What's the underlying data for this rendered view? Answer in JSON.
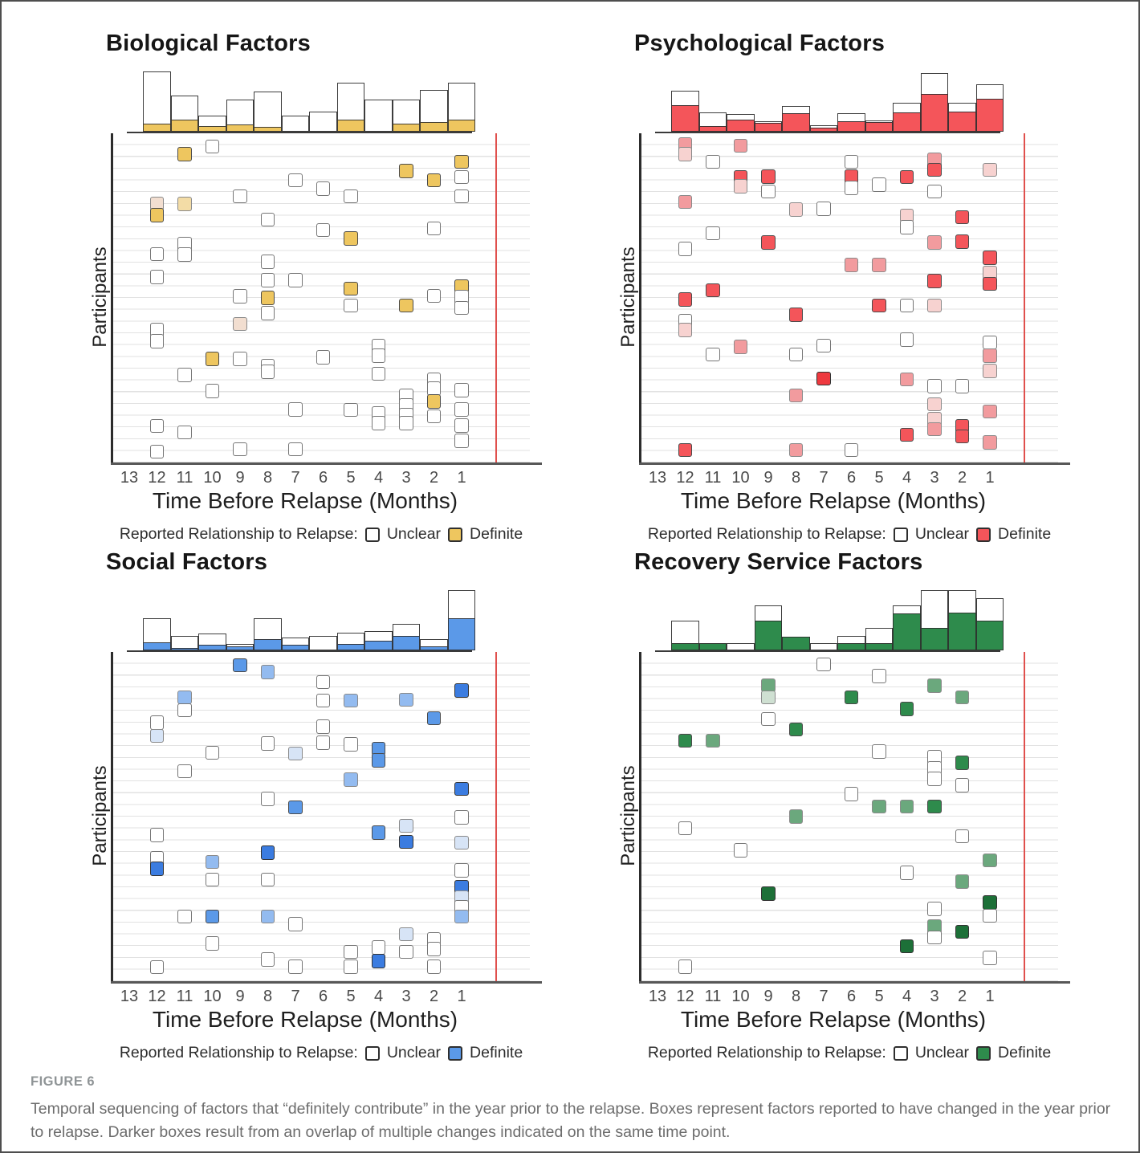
{
  "figure": {
    "label": "FIGURE 6",
    "caption": "Temporal sequencing of factors that “definitely contribute” in the year prior to the relapse. Boxes represent factors reported to have changed in the year prior to relapse. Darker boxes result from an overlap of multiple changes indicated on the same time point."
  },
  "shared": {
    "x_axis_label": "Time Before Relapse (Months)",
    "y_axis_label": "Participants",
    "x_ticks": [
      13,
      12,
      11,
      10,
      9,
      8,
      7,
      6,
      5,
      4,
      3,
      2,
      1
    ],
    "legend_prefix": "Reported Relationship to Relapse:",
    "legend_unclear": "Unclear",
    "legend_definite": "Definite",
    "box_types": {
      "u": "unclear",
      "d": "definite",
      "D": "definite-dark-overlap",
      "f": "overlap-medium",
      "p": "overlap-light"
    },
    "red_line": "relapse time marker"
  },
  "chart_data": [
    {
      "type": "bar+scatter",
      "title": "Biological Factors",
      "colors": {
        "definite": "#eec65f",
        "dark": "#e3ae3a",
        "fade": "#f3dca6",
        "pale": "#f2ded0",
        "unclear": "#ffffff"
      },
      "histogram": {
        "months": [
          12,
          11,
          10,
          9,
          8,
          7,
          6,
          5,
          4,
          3,
          2,
          1
        ],
        "total": [
          75,
          45,
          20,
          40,
          50,
          20,
          25,
          61,
          40,
          40,
          52,
          61
        ],
        "definite": [
          10,
          15,
          7,
          9,
          6,
          0,
          0,
          15,
          0,
          10,
          12,
          15
        ]
      },
      "boxes": [
        [
          10,
          0.02,
          "u"
        ],
        [
          11,
          0.044,
          "d"
        ],
        [
          1,
          0.068,
          "d"
        ],
        [
          3,
          0.098,
          "d"
        ],
        [
          1,
          0.117,
          "u"
        ],
        [
          2,
          0.127,
          "d"
        ],
        [
          7,
          0.127,
          "u"
        ],
        [
          6,
          0.154,
          "u"
        ],
        [
          5,
          0.178,
          "u"
        ],
        [
          9,
          0.178,
          "u"
        ],
        [
          1,
          0.178,
          "u"
        ],
        [
          12,
          0.2,
          "p"
        ],
        [
          11,
          0.202,
          "f"
        ],
        [
          12,
          0.237,
          "d"
        ],
        [
          8,
          0.251,
          "u"
        ],
        [
          2,
          0.28,
          "u"
        ],
        [
          6,
          0.285,
          "u"
        ],
        [
          5,
          0.312,
          "d"
        ],
        [
          11,
          0.329,
          "u"
        ],
        [
          12,
          0.361,
          "u"
        ],
        [
          11,
          0.363,
          "u"
        ],
        [
          8,
          0.385,
          "u"
        ],
        [
          12,
          0.434,
          "u"
        ],
        [
          8,
          0.444,
          "u"
        ],
        [
          7,
          0.444,
          "u"
        ],
        [
          1,
          0.463,
          "d"
        ],
        [
          5,
          0.471,
          "d"
        ],
        [
          2,
          0.493,
          "u"
        ],
        [
          9,
          0.495,
          "u"
        ],
        [
          1,
          0.498,
          "u"
        ],
        [
          8,
          0.5,
          "d"
        ],
        [
          5,
          0.524,
          "u"
        ],
        [
          3,
          0.524,
          "d"
        ],
        [
          1,
          0.532,
          "u"
        ],
        [
          8,
          0.549,
          "u"
        ],
        [
          9,
          0.583,
          "p"
        ],
        [
          12,
          0.602,
          "u"
        ],
        [
          12,
          0.637,
          "u"
        ],
        [
          4,
          0.651,
          "u"
        ],
        [
          4,
          0.683,
          "u"
        ],
        [
          6,
          0.688,
          "u"
        ],
        [
          10,
          0.693,
          "d"
        ],
        [
          9,
          0.693,
          "u"
        ],
        [
          8,
          0.715,
          "u"
        ],
        [
          8,
          0.734,
          "u"
        ],
        [
          11,
          0.744,
          "u"
        ],
        [
          4,
          0.741,
          "u"
        ],
        [
          2,
          0.759,
          "u"
        ],
        [
          2,
          0.788,
          "u"
        ],
        [
          1,
          0.793,
          "u"
        ],
        [
          10,
          0.795,
          "u"
        ],
        [
          3,
          0.81,
          "u"
        ],
        [
          2,
          0.829,
          "d"
        ],
        [
          3,
          0.841,
          "u"
        ],
        [
          7,
          0.854,
          "u"
        ],
        [
          1,
          0.854,
          "u"
        ],
        [
          5,
          0.856,
          "u"
        ],
        [
          4,
          0.866,
          "u"
        ],
        [
          3,
          0.871,
          "u"
        ],
        [
          2,
          0.876,
          "u"
        ],
        [
          4,
          0.898,
          "u"
        ],
        [
          3,
          0.898,
          "u"
        ],
        [
          1,
          0.905,
          "u"
        ],
        [
          12,
          0.907,
          "u"
        ],
        [
          11,
          0.927,
          "u"
        ],
        [
          1,
          0.954,
          "u"
        ],
        [
          9,
          0.98,
          "u"
        ],
        [
          7,
          0.98,
          "u"
        ],
        [
          12,
          0.988,
          "u"
        ]
      ]
    },
    {
      "type": "bar+scatter",
      "title": "Psychological Factors",
      "colors": {
        "definite": "#f4555a",
        "dark": "#ee393f",
        "fade": "#f29b9e",
        "pale": "#f7d2d0",
        "unclear": "#ffffff"
      },
      "histogram": {
        "months": [
          12,
          11,
          10,
          9,
          8,
          7,
          6,
          5,
          4,
          3,
          2,
          1
        ],
        "total": [
          51,
          24,
          22,
          13,
          32,
          8,
          23,
          14,
          36,
          73,
          36,
          59
        ],
        "definite": [
          33,
          7,
          15,
          11,
          23,
          5,
          13,
          12,
          24,
          47,
          25,
          41
        ]
      },
      "boxes": [
        [
          12,
          0.012,
          "f"
        ],
        [
          10,
          0.017,
          "f"
        ],
        [
          12,
          0.044,
          "p"
        ],
        [
          3,
          0.061,
          "f"
        ],
        [
          11,
          0.068,
          "u"
        ],
        [
          6,
          0.068,
          "u"
        ],
        [
          3,
          0.093,
          "d"
        ],
        [
          1,
          0.093,
          "p"
        ],
        [
          9,
          0.115,
          "d"
        ],
        [
          6,
          0.115,
          "d"
        ],
        [
          10,
          0.117,
          "d"
        ],
        [
          4,
          0.117,
          "d"
        ],
        [
          5,
          0.141,
          "u"
        ],
        [
          10,
          0.146,
          "p"
        ],
        [
          6,
          0.151,
          "u"
        ],
        [
          9,
          0.163,
          "u"
        ],
        [
          3,
          0.163,
          "u"
        ],
        [
          12,
          0.195,
          "f"
        ],
        [
          7,
          0.217,
          "u"
        ],
        [
          8,
          0.22,
          "p"
        ],
        [
          4,
          0.239,
          "p"
        ],
        [
          2,
          0.244,
          "d"
        ],
        [
          4,
          0.276,
          "u"
        ],
        [
          11,
          0.295,
          "u"
        ],
        [
          2,
          0.322,
          "d"
        ],
        [
          9,
          0.324,
          "d"
        ],
        [
          3,
          0.324,
          "f"
        ],
        [
          12,
          0.344,
          "u"
        ],
        [
          1,
          0.373,
          "d"
        ],
        [
          6,
          0.395,
          "f"
        ],
        [
          5,
          0.395,
          "f"
        ],
        [
          1,
          0.42,
          "p"
        ],
        [
          3,
          0.446,
          "d"
        ],
        [
          1,
          0.456,
          "d"
        ],
        [
          11,
          0.476,
          "d"
        ],
        [
          12,
          0.505,
          "d"
        ],
        [
          5,
          0.524,
          "d"
        ],
        [
          4,
          0.524,
          "u"
        ],
        [
          3,
          0.524,
          "p"
        ],
        [
          8,
          0.554,
          "d"
        ],
        [
          12,
          0.573,
          "u"
        ],
        [
          12,
          0.602,
          "p"
        ],
        [
          4,
          0.632,
          "u"
        ],
        [
          1,
          0.641,
          "u"
        ],
        [
          7,
          0.651,
          "u"
        ],
        [
          10,
          0.656,
          "f"
        ],
        [
          11,
          0.68,
          "u"
        ],
        [
          8,
          0.68,
          "u"
        ],
        [
          1,
          0.683,
          "f"
        ],
        [
          1,
          0.732,
          "p"
        ],
        [
          7,
          0.756,
          "D"
        ],
        [
          4,
          0.759,
          "f"
        ],
        [
          3,
          0.78,
          "u"
        ],
        [
          2,
          0.78,
          "u"
        ],
        [
          8,
          0.81,
          "f"
        ],
        [
          3,
          0.837,
          "p"
        ],
        [
          1,
          0.861,
          "f"
        ],
        [
          3,
          0.885,
          "p"
        ],
        [
          2,
          0.907,
          "d"
        ],
        [
          3,
          0.917,
          "f"
        ],
        [
          4,
          0.934,
          "d"
        ],
        [
          2,
          0.939,
          "d"
        ],
        [
          1,
          0.959,
          "f"
        ],
        [
          12,
          0.983,
          "d"
        ],
        [
          8,
          0.983,
          "f"
        ],
        [
          6,
          0.983,
          "u"
        ]
      ]
    },
    {
      "type": "bar+scatter",
      "title": "Social Factors",
      "colors": {
        "definite": "#5b99e8",
        "dark": "#3b7ce0",
        "fade": "#93bbf0",
        "pale": "#d7e4f6",
        "unclear": "#ffffff"
      },
      "histogram": {
        "months": [
          12,
          11,
          10,
          9,
          8,
          7,
          6,
          5,
          4,
          3,
          2,
          1
        ],
        "total": [
          40,
          18,
          21,
          8,
          40,
          16,
          18,
          22,
          24,
          33,
          14,
          75
        ],
        "definite": [
          10,
          3,
          7,
          5,
          14,
          7,
          0,
          8,
          12,
          18,
          5,
          40
        ]
      },
      "boxes": [
        [
          9,
          0.02,
          "d"
        ],
        [
          8,
          0.041,
          "f"
        ],
        [
          6,
          0.073,
          "u"
        ],
        [
          1,
          0.1,
          "D"
        ],
        [
          11,
          0.122,
          "f"
        ],
        [
          3,
          0.129,
          "f"
        ],
        [
          6,
          0.132,
          "u"
        ],
        [
          5,
          0.132,
          "f"
        ],
        [
          11,
          0.163,
          "u"
        ],
        [
          2,
          0.188,
          "d"
        ],
        [
          12,
          0.202,
          "u"
        ],
        [
          6,
          0.215,
          "u"
        ],
        [
          12,
          0.244,
          "p"
        ],
        [
          6,
          0.266,
          "u"
        ],
        [
          8,
          0.268,
          "u"
        ],
        [
          5,
          0.271,
          "u"
        ],
        [
          4,
          0.285,
          "d"
        ],
        [
          10,
          0.298,
          "u"
        ],
        [
          7,
          0.3,
          "p"
        ],
        [
          4,
          0.322,
          "d"
        ],
        [
          11,
          0.356,
          "u"
        ],
        [
          5,
          0.383,
          "f"
        ],
        [
          1,
          0.412,
          "D"
        ],
        [
          8,
          0.444,
          "u"
        ],
        [
          7,
          0.471,
          "d"
        ],
        [
          1,
          0.502,
          "u"
        ],
        [
          3,
          0.529,
          "p"
        ],
        [
          4,
          0.551,
          "d"
        ],
        [
          12,
          0.559,
          "u"
        ],
        [
          3,
          0.58,
          "D"
        ],
        [
          1,
          0.583,
          "p"
        ],
        [
          8,
          0.615,
          "D"
        ],
        [
          12,
          0.632,
          "u"
        ],
        [
          10,
          0.644,
          "f"
        ],
        [
          12,
          0.666,
          "D"
        ],
        [
          1,
          0.671,
          "u"
        ],
        [
          10,
          0.7,
          "u"
        ],
        [
          8,
          0.7,
          "u"
        ],
        [
          1,
          0.724,
          "D"
        ],
        [
          1,
          0.756,
          "p"
        ],
        [
          1,
          0.788,
          "u"
        ],
        [
          10,
          0.817,
          "d"
        ],
        [
          11,
          0.817,
          "u"
        ],
        [
          8,
          0.817,
          "f"
        ],
        [
          1,
          0.817,
          "f"
        ],
        [
          7,
          0.841,
          "u"
        ],
        [
          3,
          0.873,
          "p"
        ],
        [
          2,
          0.888,
          "u"
        ],
        [
          10,
          0.902,
          "u"
        ],
        [
          4,
          0.915,
          "u"
        ],
        [
          2,
          0.92,
          "u"
        ],
        [
          5,
          0.929,
          "u"
        ],
        [
          3,
          0.929,
          "u"
        ],
        [
          8,
          0.954,
          "u"
        ],
        [
          4,
          0.959,
          "D"
        ],
        [
          12,
          0.978,
          "u"
        ],
        [
          7,
          0.976,
          "u"
        ],
        [
          5,
          0.976,
          "u"
        ],
        [
          2,
          0.976,
          "u"
        ]
      ]
    },
    {
      "type": "bar+scatter",
      "title": "Recovery Service Factors",
      "colors": {
        "definite": "#2e8b4c",
        "dark": "#1d7038",
        "fade": "#6ba87d",
        "pale": "#cfe0d2",
        "unclear": "#ffffff"
      },
      "histogram": {
        "months": [
          12,
          11,
          10,
          9,
          8,
          7,
          6,
          5,
          4,
          3,
          2,
          1
        ],
        "total": [
          37,
          9,
          9,
          56,
          17,
          9,
          18,
          28,
          56,
          75,
          75,
          65
        ],
        "definite": [
          9,
          9,
          0,
          37,
          17,
          0,
          9,
          9,
          46,
          28,
          47,
          37
        ]
      },
      "boxes": [
        [
          7,
          0.017,
          "u"
        ],
        [
          5,
          0.054,
          "u"
        ],
        [
          9,
          0.083,
          "f"
        ],
        [
          3,
          0.085,
          "f"
        ],
        [
          9,
          0.122,
          "p"
        ],
        [
          6,
          0.122,
          "d"
        ],
        [
          2,
          0.122,
          "f"
        ],
        [
          4,
          0.159,
          "d"
        ],
        [
          9,
          0.19,
          "u"
        ],
        [
          8,
          0.224,
          "d"
        ],
        [
          12,
          0.259,
          "d"
        ],
        [
          11,
          0.259,
          "f"
        ],
        [
          5,
          0.293,
          "u"
        ],
        [
          3,
          0.312,
          "u"
        ],
        [
          2,
          0.329,
          "d"
        ],
        [
          3,
          0.346,
          "u"
        ],
        [
          3,
          0.38,
          "u"
        ],
        [
          2,
          0.4,
          "u"
        ],
        [
          6,
          0.429,
          "u"
        ],
        [
          5,
          0.468,
          "f"
        ],
        [
          4,
          0.468,
          "f"
        ],
        [
          3,
          0.468,
          "d"
        ],
        [
          8,
          0.5,
          "f"
        ],
        [
          12,
          0.537,
          "u"
        ],
        [
          2,
          0.563,
          "u"
        ],
        [
          10,
          0.607,
          "u"
        ],
        [
          1,
          0.639,
          "f"
        ],
        [
          4,
          0.678,
          "u"
        ],
        [
          2,
          0.707,
          "f"
        ],
        [
          9,
          0.744,
          "D"
        ],
        [
          1,
          0.773,
          "D"
        ],
        [
          3,
          0.793,
          "u"
        ],
        [
          1,
          0.815,
          "u"
        ],
        [
          3,
          0.849,
          "f"
        ],
        [
          2,
          0.866,
          "D"
        ],
        [
          3,
          0.883,
          "u"
        ],
        [
          4,
          0.912,
          "D"
        ],
        [
          1,
          0.949,
          "u"
        ],
        [
          12,
          0.976,
          "u"
        ]
      ]
    }
  ]
}
